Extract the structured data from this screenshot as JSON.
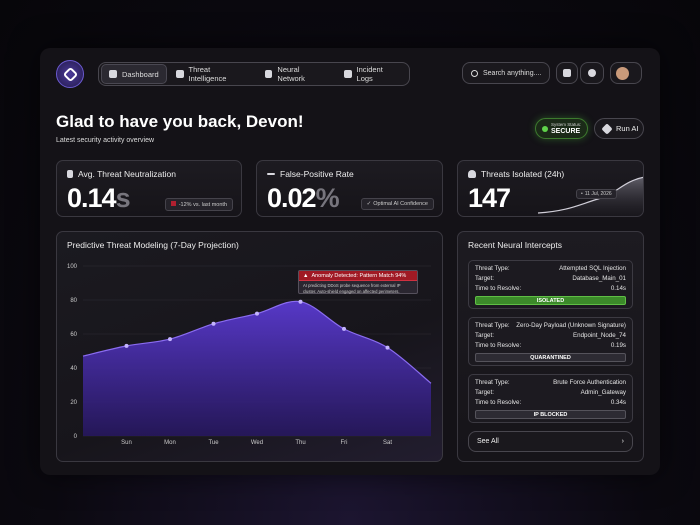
{
  "nav": {
    "items": [
      "Dashboard",
      "Threat Intelligence",
      "Neural Network",
      "Incident Logs"
    ],
    "search": "Search anything...."
  },
  "header": {
    "greeting": "Glad to have you back, Devon!",
    "subtitle": "Latest security activity overview",
    "status_label": "System Status:",
    "status": "SECURE",
    "button": "Run AI"
  },
  "stats": [
    {
      "title": "Avg. Threat Neutralization",
      "value": 0.14,
      "unit": "s",
      "badge": "-12% vs. last month"
    },
    {
      "title": "False-Positive Rate",
      "value": 0.02,
      "unit": "%",
      "badge": "Optimal AI Confidence"
    },
    {
      "title": "Threats Isolated (24h)",
      "value": 147,
      "tooltip": "11 Jul, 2026"
    }
  ],
  "chart_data": {
    "type": "area",
    "title": "Predictive Threat Modeling (7-Day Projection)",
    "categories": [
      null,
      "Sun",
      "Mon",
      "Tue",
      "Wed",
      "Thu",
      "Fri",
      "Sat",
      null
    ],
    "values": [
      47,
      53,
      57,
      66,
      72,
      79,
      63,
      52,
      31
    ],
    "color": "#8a6cf0",
    "ylim": [
      0,
      100
    ],
    "yticks": [
      0,
      20,
      40,
      60,
      80,
      100
    ],
    "grid": true,
    "annotation": {
      "title": "Anomaly Detected: Pattern Match 94%",
      "text": "AI predicting DDoS probe sequence from external IP cluster. Auto-shield engaged on affected perimeters."
    }
  },
  "intercepts": {
    "title": "Recent Neural Intercepts",
    "fields": [
      "Threat Type:",
      "Target:",
      "Time to Resolve:"
    ],
    "items": [
      {
        "type": "Attempted SQL Injection",
        "target": "Database_Main_01",
        "time": "0.14s",
        "status": "ISOLATED"
      },
      {
        "type": "Zero-Day Payload (Unknown Signature)",
        "target": "Endpoint_Node_74",
        "time": "0.19s",
        "status": "QUARANTINED"
      },
      {
        "type": "Brute Force Authentication",
        "target": "Admin_Gateway",
        "time": "0.34s",
        "status": "IP BLOCKED"
      }
    ],
    "link": "See All"
  }
}
